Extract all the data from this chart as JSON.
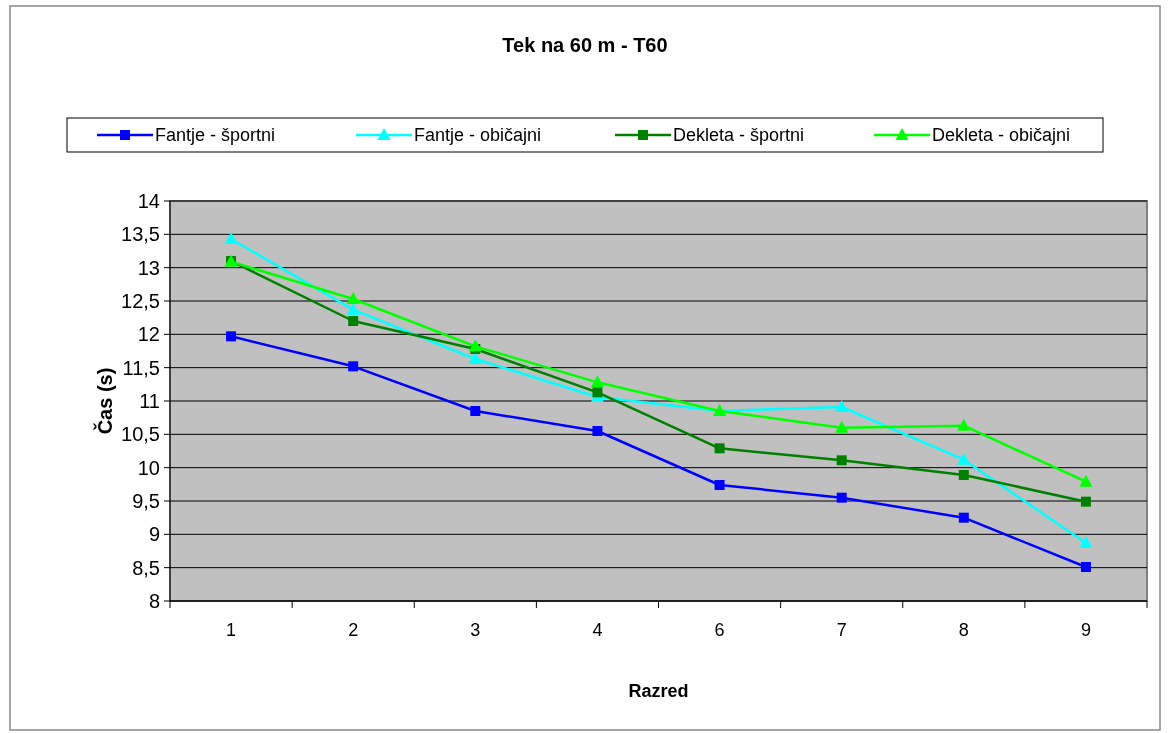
{
  "chart_data": {
    "type": "line",
    "title": "Tek na 60 m - T60",
    "xlabel": "Razred",
    "ylabel": "Čas (s)",
    "categories": [
      "1",
      "2",
      "3",
      "4",
      "6",
      "7",
      "8",
      "9"
    ],
    "series": [
      {
        "name": "Fantje - športni",
        "color": "#0000ff",
        "marker": "square",
        "values": [
          11.97,
          11.52,
          10.85,
          10.55,
          9.74,
          9.55,
          9.25,
          8.51
        ]
      },
      {
        "name": "Fantje - običajni",
        "color": "#00ffff",
        "marker": "triangle",
        "values": [
          13.43,
          12.37,
          11.63,
          11.06,
          10.85,
          10.91,
          10.12,
          8.87
        ]
      },
      {
        "name": "Dekleta - športni",
        "color": "#008000",
        "marker": "square",
        "values": [
          13.1,
          12.2,
          11.78,
          11.13,
          10.29,
          10.11,
          9.89,
          9.49
        ]
      },
      {
        "name": "Dekleta - običajni",
        "color": "#00ff00",
        "marker": "triangle",
        "values": [
          13.09,
          12.53,
          11.82,
          11.28,
          10.85,
          10.6,
          10.63,
          9.79
        ]
      }
    ],
    "ylim": [
      8,
      14
    ],
    "yticks": [
      8,
      {
        "value": 8.5,
        "label": "8,5"
      },
      9,
      {
        "value": 9.5,
        "label": "9,5"
      },
      10,
      {
        "value": 10.5,
        "label": "10,5"
      },
      11,
      {
        "value": 11.5,
        "label": "11,5"
      },
      12,
      {
        "value": 12.5,
        "label": "12,5"
      },
      13,
      {
        "value": 13.5,
        "label": "13,5"
      },
      14
    ],
    "grid": "y",
    "legend": "top"
  }
}
